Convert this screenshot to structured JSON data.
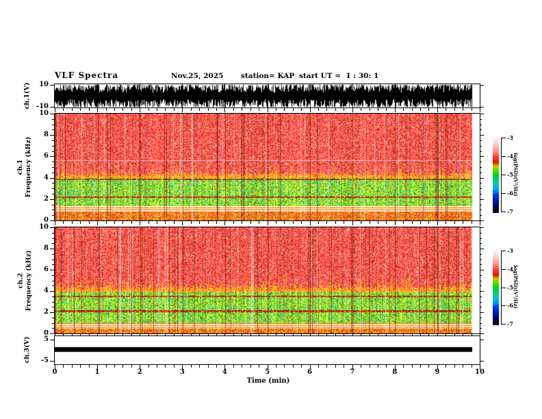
{
  "header": {
    "title": "VLF Spectra",
    "date": "Nov.25, 2025",
    "station": "station= KAP",
    "start_ut": "start UT =  1 : 30: 1"
  },
  "xaxis": {
    "label": "Time (min)",
    "min": 0,
    "max": 10,
    "major_tick_labels": [
      "0",
      "1",
      "2",
      "3",
      "4",
      "5",
      "6",
      "7",
      "8",
      "9",
      "10"
    ],
    "minor_step": 0.2,
    "data_end_min": 9.82
  },
  "chart_data": {
    "type": "heatmap",
    "title": "VLF Spectra",
    "seed": 1337,
    "panels": [
      {
        "id": "ch1-waveform",
        "type": "waveform",
        "ylabel": "ch.1(V)",
        "ylim": [
          -10.5,
          10.5
        ],
        "yticks": [
          10,
          -10
        ],
        "ytick_labels": [
          "10",
          "-10"
        ],
        "color": "#000000",
        "signal": "dense broadband noise filling most of the ±10 V range from t=0 to t=9.82 min, frequently clipping at ±10 V",
        "gridlines_min": [
          1,
          2,
          3,
          4,
          5,
          6,
          7,
          8,
          9
        ]
      },
      {
        "id": "ch1-spectrogram",
        "type": "spectrogram",
        "ylabel_line1": "ch.1",
        "ylabel_line2": "Frequency (kHz)",
        "ylim": [
          0,
          10
        ],
        "yticks": [
          0,
          2,
          4,
          6,
          8,
          10
        ],
        "ytick_labels": [
          "0",
          "2",
          "4",
          "6",
          "8",
          "10"
        ],
        "yminor_step": 0.5,
        "bands": {
          "red_top_khz": [
            4.5,
            10
          ],
          "transition_khz": [
            4.0,
            4.5
          ],
          "green_khz": [
            1.35,
            4.0
          ],
          "stripes_khz": [
            0.75,
            1.35
          ],
          "bottom_khz": [
            0,
            0.75
          ]
        },
        "hlines_khz": [
          3.85,
          2.2
        ],
        "white_hline_khz": 5.6,
        "psd_levels": {
          "red_top": "≈ -3.8 log(PSD) red with pale vertical streaks",
          "green": "≈ -5 green/yellow with cyan patches and dark-red minute streaks",
          "stripes": "thin horizontal white/yellow/red lines",
          "bottom": "≈ -4 orange-red speckle"
        },
        "colorbar": {
          "label": "log(PSD)(V²/Hz)",
          "tick_labels": [
            "-3",
            "-4",
            "-5",
            "-6",
            "-7"
          ],
          "min": -7,
          "max": -3
        }
      },
      {
        "id": "ch2-spectrogram",
        "type": "spectrogram",
        "ylabel_line1": "ch.2",
        "ylabel_line2": "Frequency (kHz)",
        "ylim": [
          0,
          10
        ],
        "yticks": [
          0,
          2,
          4,
          6,
          8,
          10
        ],
        "ytick_labels": [
          "0",
          "2",
          "4",
          "6",
          "8",
          "10"
        ],
        "yminor_step": 0.5,
        "bands": {
          "red_top_khz": [
            4.6,
            10
          ],
          "transition_khz": [
            3.9,
            4.6
          ],
          "green_khz": [
            0.95,
            3.9
          ],
          "stripes_khz": [
            0.45,
            0.95
          ],
          "bottom_khz": [
            0,
            0.45
          ]
        },
        "hlines_khz": [
          3.5,
          2.1
        ],
        "white_hline_khz": null,
        "psd_levels": {
          "red_top": "≈ -3.8 log(PSD) red with pale vertical streaks",
          "green": "≈ -5 green with stronger cyan patches",
          "stripes": "thin horizontal white/yellow/red lines",
          "bottom": "≈ -4 orange-red speckle"
        },
        "colorbar": {
          "label": "log(PSD)(V²/Hz)",
          "tick_labels": [
            "-3",
            "-4",
            "-5",
            "-6",
            "-7"
          ],
          "min": -7,
          "max": -3
        }
      },
      {
        "id": "ch3-bar",
        "type": "bar",
        "ylabel": "ch.3(V)",
        "ylim": [
          -6.5,
          6.5
        ],
        "yticks": [
          5,
          -5
        ],
        "ytick_labels": [
          "5",
          "-5"
        ],
        "bar": {
          "x_start_min": 0,
          "x_end_min": 9.82,
          "y_center_v": 0.5,
          "half_height_v": 1.05,
          "color": "#000000"
        }
      }
    ],
    "colormap_stops": [
      [
        0,
        "#ffffff"
      ],
      [
        0.1,
        "#ffd2d2"
      ],
      [
        0.2,
        "#ff8c8c"
      ],
      [
        0.27,
        "#ff3a2a"
      ],
      [
        0.34,
        "#ee1000"
      ],
      [
        0.39,
        "#c8c800"
      ],
      [
        0.45,
        "#55dd00"
      ],
      [
        0.5,
        "#00d414"
      ],
      [
        0.57,
        "#00cc7a"
      ],
      [
        0.63,
        "#00c8c8"
      ],
      [
        0.7,
        "#009ce8"
      ],
      [
        0.76,
        "#0040f0"
      ],
      [
        0.82,
        "#0018c8"
      ],
      [
        0.9,
        "#000a6e"
      ],
      [
        1,
        "#000000"
      ]
    ]
  }
}
